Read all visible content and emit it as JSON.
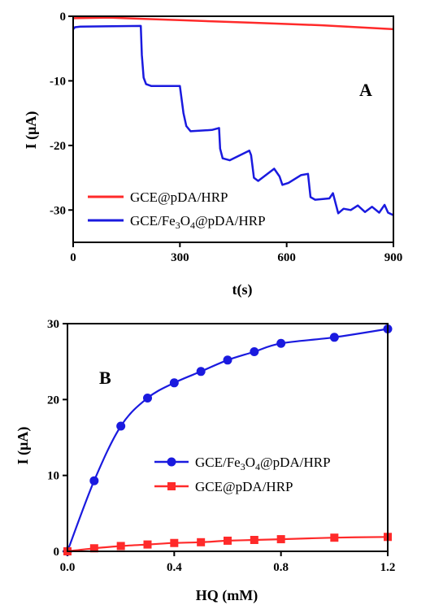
{
  "chart_data": [
    {
      "type": "line",
      "panel_label": "A",
      "xlabel": "t(s)",
      "ylabel": "I (μA)",
      "xlim": [
        0,
        900
      ],
      "ylim": [
        -35,
        0
      ],
      "x_ticks": [
        0,
        300,
        600,
        900
      ],
      "y_ticks": [
        0,
        -10,
        -20,
        -30
      ],
      "legend_position": "bottom-left",
      "series": [
        {
          "name": "GCE@pDA/HRP",
          "color": "#ff2a2a",
          "points": [
            [
              0,
              -0.3
            ],
            [
              100,
              -0.2
            ],
            [
              200,
              -0.4
            ],
            [
              300,
              -0.6
            ],
            [
              400,
              -0.8
            ],
            [
              500,
              -1.0
            ],
            [
              600,
              -1.2
            ],
            [
              700,
              -1.4
            ],
            [
              800,
              -1.7
            ],
            [
              900,
              -2.0
            ]
          ]
        },
        {
          "name": "GCE/Fe3O4@pDA/HRP",
          "color": "#1a1adf",
          "points": [
            [
              0,
              -2.0
            ],
            [
              5,
              -1.7
            ],
            [
              20,
              -1.6
            ],
            [
              190,
              -1.5
            ],
            [
              193,
              -6
            ],
            [
              198,
              -9.5
            ],
            [
              205,
              -10.5
            ],
            [
              220,
              -10.8
            ],
            [
              300,
              -10.8
            ],
            [
              310,
              -15
            ],
            [
              318,
              -17
            ],
            [
              330,
              -17.8
            ],
            [
              390,
              -17.6
            ],
            [
              410,
              -17.3
            ],
            [
              413,
              -20.5
            ],
            [
              420,
              -22
            ],
            [
              440,
              -22.3
            ],
            [
              495,
              -20.8
            ],
            [
              500,
              -21.5
            ],
            [
              508,
              -25
            ],
            [
              520,
              -25.5
            ],
            [
              565,
              -23.6
            ],
            [
              580,
              -24.8
            ],
            [
              588,
              -26.1
            ],
            [
              605,
              -25.8
            ],
            [
              640,
              -24.6
            ],
            [
              660,
              -24.4
            ],
            [
              667,
              -28
            ],
            [
              680,
              -28.4
            ],
            [
              720,
              -28.2
            ],
            [
              730,
              -27.4
            ],
            [
              745,
              -30.5
            ],
            [
              760,
              -29.8
            ],
            [
              780,
              -30
            ],
            [
              800,
              -29.3
            ],
            [
              820,
              -30.3
            ],
            [
              840,
              -29.5
            ],
            [
              860,
              -30.4
            ],
            [
              875,
              -29.2
            ],
            [
              885,
              -30.4
            ],
            [
              900,
              -30.8
            ]
          ]
        }
      ]
    },
    {
      "type": "scatter",
      "panel_label": "B",
      "xlabel": "HQ (mM)",
      "ylabel": "I (μA)",
      "xlim": [
        0,
        1.2
      ],
      "ylim": [
        0,
        30
      ],
      "x_ticks": [
        "0.0",
        "0.4",
        "0.8",
        "1.2"
      ],
      "y_ticks": [
        0,
        10,
        20,
        30
      ],
      "legend_position": "center-right",
      "series": [
        {
          "name": "GCE/Fe3O4@pDA/HRP",
          "color": "#1a1adf",
          "marker": "circle",
          "x": [
            0,
            0.1,
            0.2,
            0.3,
            0.4,
            0.5,
            0.6,
            0.7,
            0.8,
            1.0,
            1.2
          ],
          "y": [
            0,
            9.3,
            16.5,
            20.2,
            22.2,
            23.7,
            25.2,
            26.3,
            27.4,
            28.2,
            29.3
          ]
        },
        {
          "name": "GCE@pDA/HRP",
          "color": "#ff2a2a",
          "marker": "square",
          "x": [
            0,
            0.1,
            0.2,
            0.3,
            0.4,
            0.5,
            0.6,
            0.7,
            0.8,
            1.0,
            1.2
          ],
          "y": [
            0,
            0.4,
            0.7,
            0.9,
            1.1,
            1.2,
            1.4,
            1.5,
            1.6,
            1.8,
            1.9
          ]
        }
      ]
    }
  ],
  "legend_a": {
    "red_label": "GCE@pDA/HRP",
    "blue_label_pre": "GCE/Fe",
    "blue_sub1": "3",
    "blue_label_mid": "O",
    "blue_sub2": "4",
    "blue_label_post": "@pDA/HRP"
  },
  "legend_b": {
    "blue_label_pre": "GCE/Fe",
    "blue_sub1": "3",
    "blue_label_mid": "O",
    "blue_sub2": "4",
    "blue_label_post": "@pDA/HRP",
    "red_label": "GCE@pDA/HRP"
  },
  "axis_a": {
    "ylabel_pre": "I (",
    "ylabel_mu": "μ",
    "ylabel_post": "A)"
  },
  "axis_b": {
    "ylabel_pre": "I (",
    "ylabel_mu": "μ",
    "ylabel_post": "A)"
  }
}
